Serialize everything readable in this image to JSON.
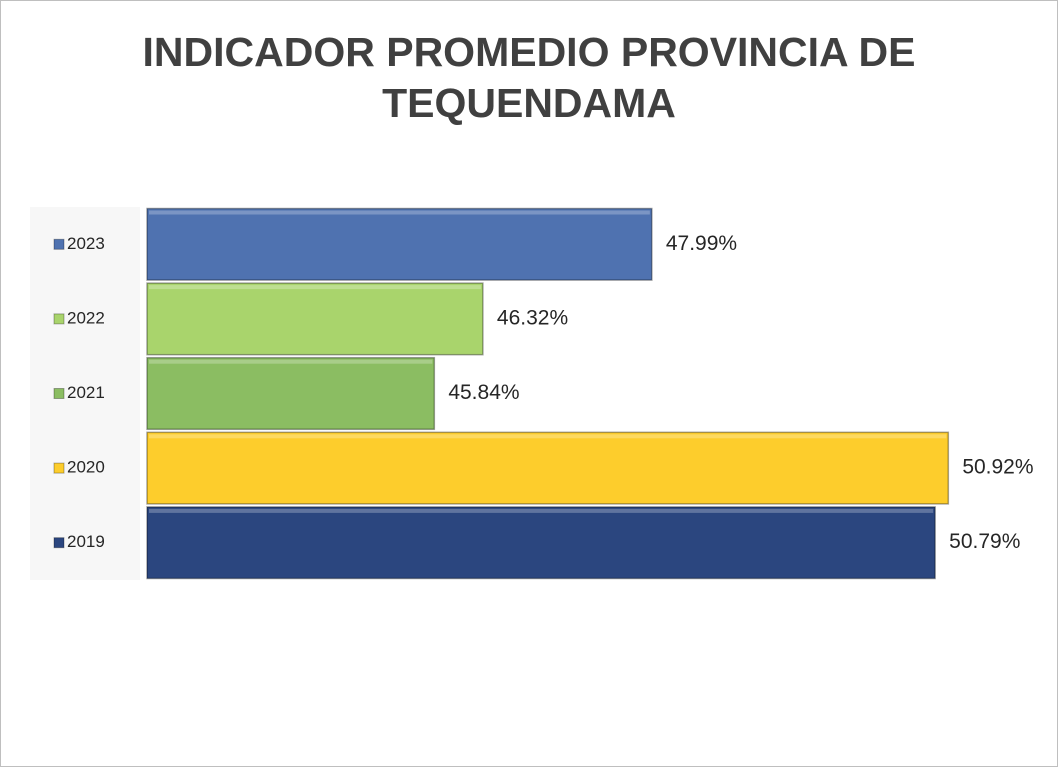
{
  "chart_data": {
    "type": "bar",
    "orientation": "horizontal",
    "title": [
      "INDICADOR PROMEDIO PROVINCIA DE",
      "TEQUENDAMA"
    ],
    "categories": [
      "2023",
      "2022",
      "2021",
      "2020",
      "2019"
    ],
    "values": [
      47.99,
      46.32,
      45.84,
      50.92,
      50.79
    ],
    "value_labels": [
      "47.99%",
      "46.32%",
      "45.84%",
      "50.92%",
      "50.79%"
    ],
    "colors": [
      "#4f72b0",
      "#a9d46c",
      "#8bbd62",
      "#fdcd2c",
      "#2b467f"
    ],
    "xlim": [
      43,
      51.5
    ]
  }
}
